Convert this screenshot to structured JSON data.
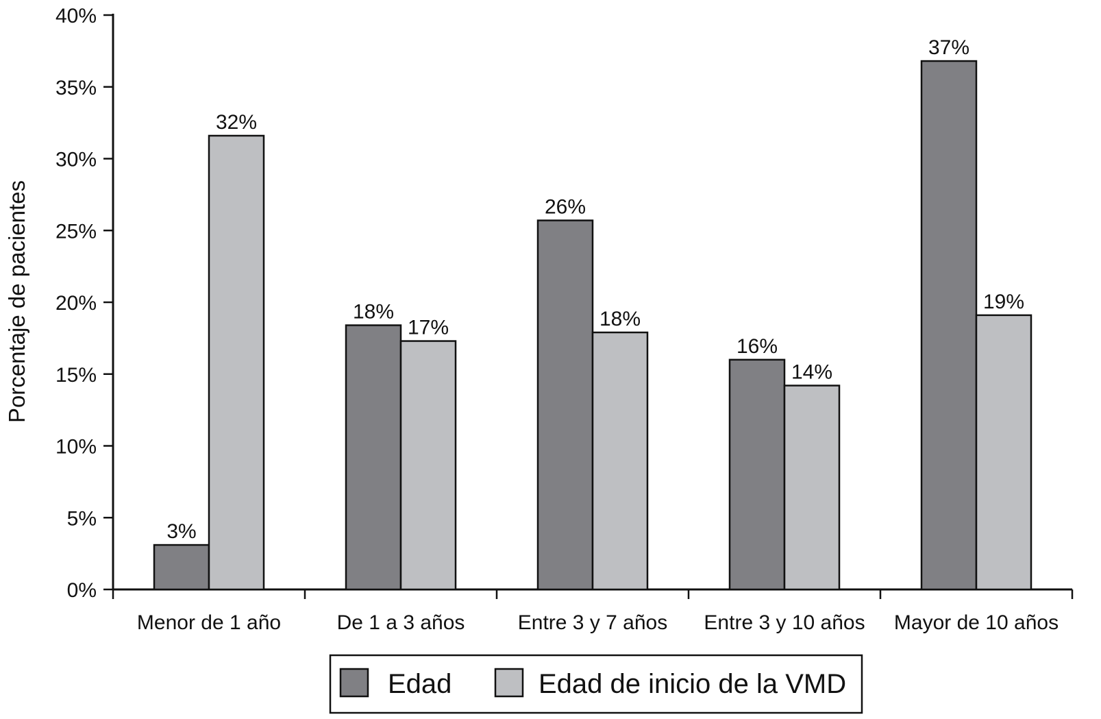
{
  "chart_data": {
    "type": "bar",
    "categories": [
      "Menor de 1 año",
      "De 1 a 3 años",
      "Entre 3 y 7 años",
      "Entre 3 y 10 años",
      "Mayor de 10 años"
    ],
    "series": [
      {
        "name": "Edad",
        "values": [
          3.1,
          18.4,
          25.7,
          16.0,
          36.8
        ],
        "labels": [
          "3%",
          "18%",
          "26%",
          "16%",
          "37%"
        ],
        "color": "#808084"
      },
      {
        "name": "Edad de inicio de la VMD",
        "values": [
          31.6,
          17.3,
          17.9,
          14.2,
          19.1
        ],
        "labels": [
          "32%",
          "17%",
          "18%",
          "14%",
          "19%"
        ],
        "color": "#bebfc2"
      }
    ],
    "ylabel": "Porcentaje de pacientes",
    "xlabel": "",
    "ylim": [
      0,
      40
    ],
    "yticks": [
      0,
      5,
      10,
      15,
      20,
      25,
      30,
      35,
      40
    ],
    "ytick_labels": [
      "0%",
      "5%",
      "10%",
      "15%",
      "20%",
      "25%",
      "30%",
      "35%",
      "40%"
    ],
    "grid": false,
    "legend_position": "bottom-center"
  }
}
